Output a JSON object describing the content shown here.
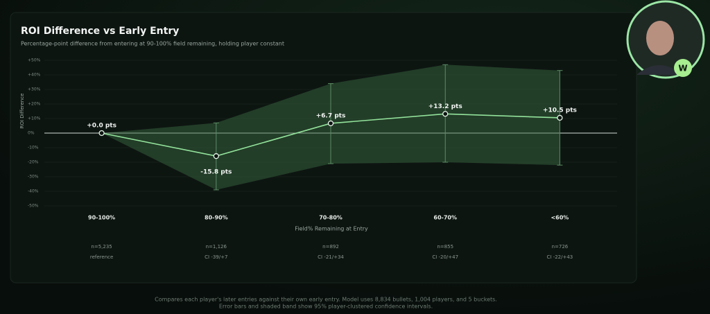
{
  "chart_data": {
    "type": "line",
    "title": "ROI Difference vs Early Entry",
    "subtitle": "Percentage-point difference from entering at 90-100% field remaining, holding player constant",
    "xlabel": "Field% Remaining at Entry",
    "ylabel": "ROI Difference",
    "categories": [
      "90-100%",
      "80-90%",
      "70-80%",
      "60-70%",
      "<60%"
    ],
    "values": [
      0,
      -15.8,
      6.7,
      13.2,
      10.5
    ],
    "value_labels": [
      "+0.0 pts",
      "-15.8 pts",
      "+6.7 pts",
      "+13.2 pts",
      "+10.5 pts"
    ],
    "ci_low": [
      null,
      -39,
      -21,
      -20,
      -22
    ],
    "ci_high": [
      null,
      7,
      34,
      47,
      43
    ],
    "sample_labels": [
      "n=5,235",
      "n=1,126",
      "n=892",
      "n=855",
      "n=726"
    ],
    "ci_labels": [
      "reference",
      "CI -39/+7",
      "CI -21/+34",
      "CI -20/+47",
      "CI -22/+43"
    ],
    "ylim": [
      -50,
      50
    ],
    "yticks": [
      {
        "value": -50,
        "label": "-50%"
      },
      {
        "value": -40,
        "label": "-40%"
      },
      {
        "value": -30,
        "label": "-30%"
      },
      {
        "value": -20,
        "label": "-20%"
      },
      {
        "value": -10,
        "label": "-10%"
      },
      {
        "value": 0,
        "label": "0%"
      },
      {
        "value": 10,
        "label": "+10%"
      },
      {
        "value": 20,
        "label": "+20%"
      },
      {
        "value": 30,
        "label": "+30%"
      },
      {
        "value": 40,
        "label": "+40%"
      },
      {
        "value": 50,
        "label": "+50%"
      }
    ],
    "grid": true,
    "color": "#93e39b",
    "band_color": "#3c6e44"
  },
  "footer": [
    "Compares each player's later entries against their own early entry. Model uses 8,834 bullets, 1,004 players, and 5 buckets.",
    "Error bars and shaded band show 95% player-clustered confidence intervals."
  ],
  "overlay": {
    "logo": "W"
  }
}
